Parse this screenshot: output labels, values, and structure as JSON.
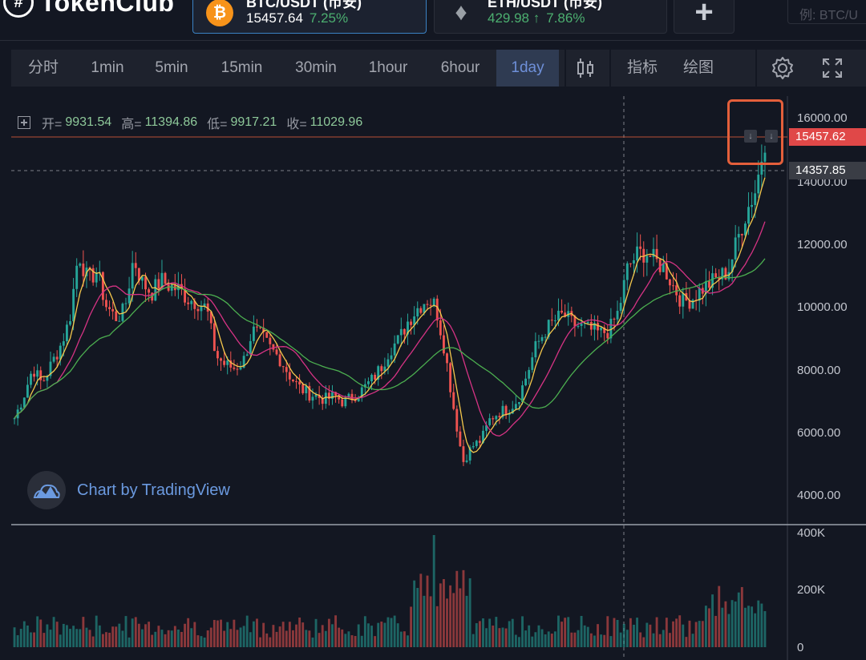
{
  "app": {
    "name": "TokenClub",
    "logo_glyph": "#"
  },
  "tickers": [
    {
      "pair": "BTC/USDT (币安)",
      "price": "15457.64",
      "change": "7.25%",
      "coin": "bitcoin-icon"
    },
    {
      "pair": "ETH/USDT (币安)",
      "price": "429.98 ↑",
      "change": "7.86%",
      "coin": "ethereum-icon"
    }
  ],
  "add_button": "+",
  "search": {
    "placeholder": "例: BTC/U"
  },
  "toolbar": {
    "intervals": [
      "分时",
      "1min",
      "5min",
      "15min",
      "30min",
      "1hour",
      "6hour",
      "1day"
    ],
    "active_interval": "1day",
    "indicators_label": "指标",
    "drawing_label": "绘图"
  },
  "legend": {
    "open_label": "开=",
    "open": "9931.54",
    "high_label": "高=",
    "high": "11394.86",
    "low_label": "低=",
    "low": "9917.21",
    "close_label": "收=",
    "close": "11029.96"
  },
  "price_axis": [
    "16000.00",
    "14000.00",
    "12000.00",
    "10000.00",
    "8000.00",
    "6000.00",
    "4000.00"
  ],
  "volume_axis": [
    "400K",
    "200K",
    "0"
  ],
  "last_price_tag": "15457.62",
  "crosshair_price_tag": "14357.85",
  "watermark": "Chart by TradingView",
  "colors": {
    "up": "#26a69a",
    "down": "#ef5350",
    "accent": "#e45f3b",
    "active_tab": "#2f3b52",
    "ma_fast": "#f5c84c",
    "ma_mid": "#d63384",
    "ma_slow": "#4caf50"
  },
  "chart_data": {
    "type": "candlestick",
    "ylim": [
      3500,
      16500
    ],
    "close_series": [
      6500,
      7200,
      8100,
      7600,
      8200,
      8800,
      9600,
      11800,
      10900,
      11200,
      10100,
      9700,
      9900,
      11600,
      10800,
      10500,
      10900,
      10700,
      10600,
      10300,
      10200,
      10000,
      8500,
      8200,
      8100,
      8300,
      9300,
      9100,
      8700,
      8400,
      7900,
      7500,
      7300,
      7200,
      7100,
      7200,
      7000,
      7200,
      7400,
      7700,
      8100,
      8700,
      9000,
      9600,
      10000,
      10300,
      10100,
      8700,
      6800,
      5100,
      5600,
      5800,
      6500,
      6700,
      6800,
      7100,
      7900,
      8800,
      9300,
      9600,
      9800,
      9500,
      9400,
      9300,
      9200,
      9300,
      9900,
      11300,
      11700,
      11800,
      11500,
      11300,
      10700,
      10200,
      10300,
      10600,
      10800,
      11000,
      11200,
      12200,
      13100,
      13800,
      15400
    ],
    "volume_max": "400K"
  }
}
